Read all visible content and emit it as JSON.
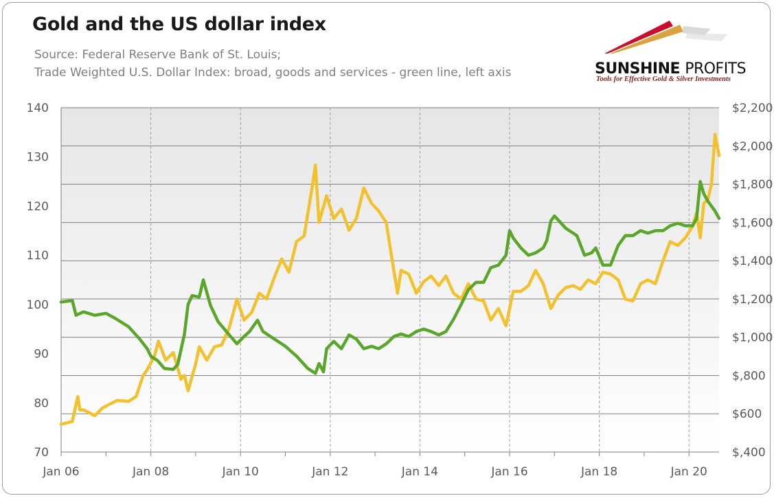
{
  "title": "Gold and the US dollar index",
  "subtitle_lines": [
    "Source: Federal Reserve Bank of St. Louis;",
    "Trade Weighted U.S. Dollar Index: broad, goods and services - green line, left axis"
  ],
  "logo": {
    "name_bold": "SUNSHINE",
    "name_light": "PROFITS",
    "tagline": "Tools for Effective Gold & Silver Investments",
    "colors": [
      "#c8102e",
      "#d9a440",
      "#b0b0b0"
    ]
  },
  "colors": {
    "dollar_line": "#5aa62a",
    "gold_line": "#f2c12e",
    "grid": "#7f7f7f",
    "plot_bg_top": "#e6e6e6",
    "plot_bg_bottom": "#ffffff",
    "axis_text": "#595959"
  },
  "chart_data": {
    "type": "line",
    "title": "Gold and the US dollar index",
    "x_tick_labels": [
      "Jan 06",
      "Jan 08",
      "Jan 10",
      "Jan 12",
      "Jan 14",
      "Jan 16",
      "Jan 18",
      "Jan 20"
    ],
    "x_range": [
      2006.0,
      2020.67
    ],
    "y_left": {
      "range": [
        70,
        140
      ],
      "ticks": [
        70,
        80,
        90,
        100,
        110,
        120,
        130,
        140
      ],
      "tick_labels": [
        "70",
        "80",
        "90",
        "100",
        "110",
        "120",
        "130",
        "140"
      ]
    },
    "y_right": {
      "range": [
        400,
        2200
      ],
      "ticks": [
        400,
        600,
        800,
        1000,
        1200,
        1400,
        1600,
        1800,
        2000,
        2200
      ],
      "tick_labels": [
        "$,400",
        "$600",
        "$,800",
        "$1,000",
        "$1,200",
        "$1,400",
        "$1,600",
        "$1,800",
        "$2,000",
        "$2,200"
      ]
    },
    "grid": {
      "horizontal": true,
      "vertical_dashed": true
    },
    "series": [
      {
        "axis": "left",
        "color": "#5aa62a",
        "points": [
          [
            2006.0,
            100.5
          ],
          [
            2006.25,
            100.8
          ],
          [
            2006.33,
            97.8
          ],
          [
            2006.5,
            98.5
          ],
          [
            2006.75,
            97.8
          ],
          [
            2007.0,
            98.2
          ],
          [
            2007.2,
            97.2
          ],
          [
            2007.5,
            95.5
          ],
          [
            2007.75,
            93.0
          ],
          [
            2007.92,
            91.0
          ],
          [
            2008.0,
            89.5
          ],
          [
            2008.15,
            88.6
          ],
          [
            2008.3,
            87.0
          ],
          [
            2008.5,
            86.8
          ],
          [
            2008.6,
            87.8
          ],
          [
            2008.75,
            94.0
          ],
          [
            2008.83,
            100.0
          ],
          [
            2008.92,
            101.8
          ],
          [
            2009.08,
            101.5
          ],
          [
            2009.17,
            105.0
          ],
          [
            2009.33,
            99.8
          ],
          [
            2009.5,
            96.5
          ],
          [
            2009.75,
            93.8
          ],
          [
            2009.92,
            92.0
          ],
          [
            2010.08,
            93.5
          ],
          [
            2010.2,
            94.5
          ],
          [
            2010.38,
            96.8
          ],
          [
            2010.5,
            94.5
          ],
          [
            2010.75,
            93.0
          ],
          [
            2011.0,
            91.5
          ],
          [
            2011.25,
            89.5
          ],
          [
            2011.5,
            87.0
          ],
          [
            2011.67,
            86.0
          ],
          [
            2011.75,
            88.0
          ],
          [
            2011.85,
            86.3
          ],
          [
            2011.92,
            91.0
          ],
          [
            2012.08,
            92.5
          ],
          [
            2012.25,
            91.0
          ],
          [
            2012.42,
            93.8
          ],
          [
            2012.58,
            93.0
          ],
          [
            2012.75,
            91.0
          ],
          [
            2012.92,
            91.5
          ],
          [
            2013.08,
            91.0
          ],
          [
            2013.25,
            92.0
          ],
          [
            2013.42,
            93.5
          ],
          [
            2013.58,
            94.0
          ],
          [
            2013.75,
            93.5
          ],
          [
            2013.92,
            94.5
          ],
          [
            2014.08,
            95.0
          ],
          [
            2014.25,
            94.5
          ],
          [
            2014.42,
            93.8
          ],
          [
            2014.58,
            94.5
          ],
          [
            2014.75,
            97.0
          ],
          [
            2014.92,
            100.0
          ],
          [
            2015.08,
            103.0
          ],
          [
            2015.25,
            104.5
          ],
          [
            2015.42,
            104.5
          ],
          [
            2015.58,
            107.5
          ],
          [
            2015.75,
            108.0
          ],
          [
            2015.92,
            110.0
          ],
          [
            2016.0,
            115.0
          ],
          [
            2016.08,
            113.5
          ],
          [
            2016.25,
            111.5
          ],
          [
            2016.42,
            110.0
          ],
          [
            2016.58,
            110.5
          ],
          [
            2016.75,
            111.5
          ],
          [
            2016.83,
            113.0
          ],
          [
            2016.92,
            117.0
          ],
          [
            2017.0,
            118.0
          ],
          [
            2017.25,
            115.5
          ],
          [
            2017.5,
            114.0
          ],
          [
            2017.67,
            110.0
          ],
          [
            2017.83,
            110.5
          ],
          [
            2017.92,
            111.5
          ],
          [
            2018.08,
            108.0
          ],
          [
            2018.25,
            108.0
          ],
          [
            2018.42,
            112.0
          ],
          [
            2018.58,
            114.0
          ],
          [
            2018.75,
            114.0
          ],
          [
            2018.92,
            115.0
          ],
          [
            2019.08,
            114.5
          ],
          [
            2019.25,
            115.0
          ],
          [
            2019.42,
            115.0
          ],
          [
            2019.58,
            116.0
          ],
          [
            2019.75,
            116.5
          ],
          [
            2019.92,
            116.0
          ],
          [
            2020.08,
            116.0
          ],
          [
            2020.17,
            117.5
          ],
          [
            2020.25,
            125.0
          ],
          [
            2020.33,
            122.5
          ],
          [
            2020.42,
            121.0
          ],
          [
            2020.5,
            120.0
          ],
          [
            2020.58,
            119.0
          ],
          [
            2020.67,
            117.5
          ]
        ]
      },
      {
        "axis": "right",
        "color": "#f2c12e",
        "points": [
          [
            2006.0,
            545
          ],
          [
            2006.25,
            560
          ],
          [
            2006.37,
            690
          ],
          [
            2006.42,
            620
          ],
          [
            2006.5,
            620
          ],
          [
            2006.75,
            590
          ],
          [
            2006.92,
            630
          ],
          [
            2007.08,
            650
          ],
          [
            2007.25,
            670
          ],
          [
            2007.5,
            665
          ],
          [
            2007.67,
            690
          ],
          [
            2007.83,
            800
          ],
          [
            2007.92,
            830
          ],
          [
            2008.08,
            900
          ],
          [
            2008.17,
            980
          ],
          [
            2008.33,
            880
          ],
          [
            2008.5,
            920
          ],
          [
            2008.67,
            780
          ],
          [
            2008.75,
            800
          ],
          [
            2008.83,
            720
          ],
          [
            2009.0,
            860
          ],
          [
            2009.08,
            950
          ],
          [
            2009.25,
            880
          ],
          [
            2009.42,
            950
          ],
          [
            2009.58,
            960
          ],
          [
            2009.75,
            1050
          ],
          [
            2009.92,
            1200
          ],
          [
            2010.08,
            1090
          ],
          [
            2010.25,
            1130
          ],
          [
            2010.42,
            1230
          ],
          [
            2010.58,
            1200
          ],
          [
            2010.75,
            1310
          ],
          [
            2010.92,
            1410
          ],
          [
            2011.08,
            1340
          ],
          [
            2011.25,
            1500
          ],
          [
            2011.42,
            1530
          ],
          [
            2011.58,
            1760
          ],
          [
            2011.67,
            1900
          ],
          [
            2011.75,
            1600
          ],
          [
            2011.92,
            1740
          ],
          [
            2012.08,
            1620
          ],
          [
            2012.25,
            1670
          ],
          [
            2012.42,
            1560
          ],
          [
            2012.58,
            1620
          ],
          [
            2012.75,
            1780
          ],
          [
            2012.92,
            1700
          ],
          [
            2013.08,
            1660
          ],
          [
            2013.25,
            1600
          ],
          [
            2013.37,
            1420
          ],
          [
            2013.5,
            1230
          ],
          [
            2013.58,
            1350
          ],
          [
            2013.75,
            1330
          ],
          [
            2013.92,
            1230
          ],
          [
            2014.08,
            1290
          ],
          [
            2014.25,
            1320
          ],
          [
            2014.42,
            1270
          ],
          [
            2014.58,
            1320
          ],
          [
            2014.75,
            1230
          ],
          [
            2014.92,
            1200
          ],
          [
            2015.08,
            1280
          ],
          [
            2015.25,
            1200
          ],
          [
            2015.42,
            1190
          ],
          [
            2015.58,
            1090
          ],
          [
            2015.75,
            1150
          ],
          [
            2015.92,
            1060
          ],
          [
            2016.08,
            1240
          ],
          [
            2016.25,
            1240
          ],
          [
            2016.42,
            1270
          ],
          [
            2016.58,
            1350
          ],
          [
            2016.75,
            1280
          ],
          [
            2016.92,
            1150
          ],
          [
            2017.08,
            1220
          ],
          [
            2017.25,
            1260
          ],
          [
            2017.42,
            1270
          ],
          [
            2017.58,
            1250
          ],
          [
            2017.75,
            1300
          ],
          [
            2017.92,
            1280
          ],
          [
            2018.08,
            1340
          ],
          [
            2018.25,
            1330
          ],
          [
            2018.42,
            1300
          ],
          [
            2018.58,
            1200
          ],
          [
            2018.75,
            1190
          ],
          [
            2018.92,
            1280
          ],
          [
            2019.08,
            1300
          ],
          [
            2019.25,
            1280
          ],
          [
            2019.42,
            1400
          ],
          [
            2019.58,
            1500
          ],
          [
            2019.75,
            1480
          ],
          [
            2019.92,
            1520
          ],
          [
            2020.08,
            1580
          ],
          [
            2020.17,
            1650
          ],
          [
            2020.25,
            1520
          ],
          [
            2020.33,
            1700
          ],
          [
            2020.42,
            1720
          ],
          [
            2020.5,
            1800
          ],
          [
            2020.58,
            2060
          ],
          [
            2020.67,
            1950
          ]
        ]
      }
    ]
  }
}
